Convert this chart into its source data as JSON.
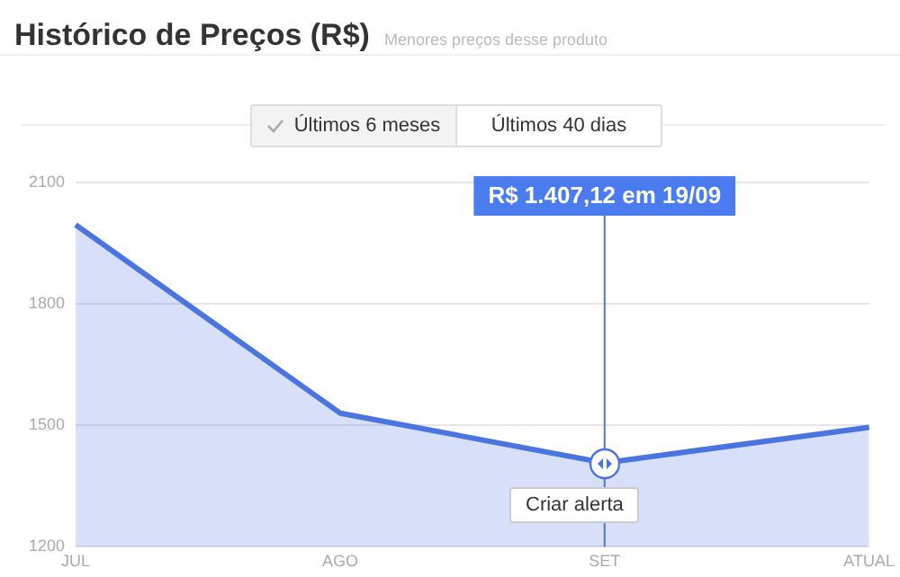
{
  "chart_data": {
    "type": "area",
    "title": "Histórico de Preços (R$)",
    "subtitle": "Menores preços desse produto",
    "categories": [
      "JUL",
      "AGO",
      "SET",
      "ATUAL"
    ],
    "series": [
      {
        "color": "#4a74e0",
        "values": [
          1995,
          1530,
          1407.12,
          1495
        ]
      }
    ],
    "ylim": [
      1200,
      2100
    ],
    "yticks": [
      1200,
      1500,
      1800,
      2100
    ],
    "grid": "y",
    "legend": false,
    "marker": "none",
    "line_style": "solid",
    "ref_lines": [
      {
        "axis": "x",
        "value": "SET",
        "color": "#4a74e0"
      }
    ],
    "annotations": [
      "Últimos 6 meses",
      "Últimos 40 dias",
      "Criar alerta",
      "R$ 1.407,12 em 19/09"
    ]
  }
}
